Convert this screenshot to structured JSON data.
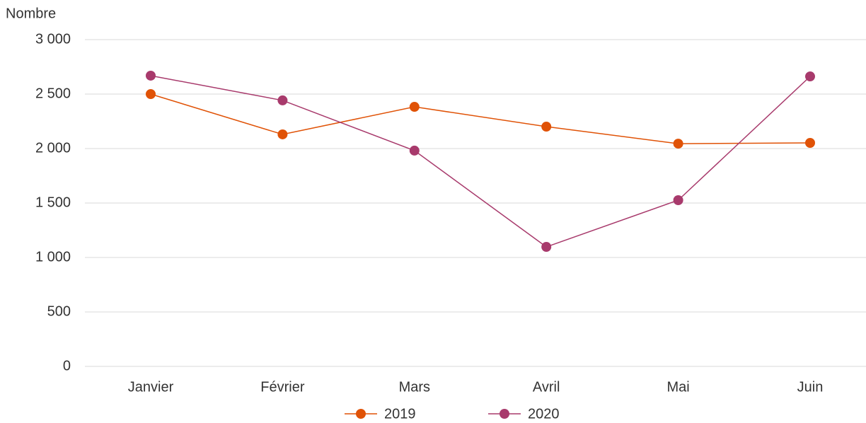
{
  "chart_data": {
    "type": "line",
    "y_label": "Nombre",
    "categories": [
      "Janvier",
      "Février",
      "Mars",
      "Avril",
      "Mai",
      "Juin"
    ],
    "series": [
      {
        "name": "2019",
        "color": "#e05206",
        "values": [
          2500,
          2130,
          2383,
          2201,
          2045,
          2052
        ]
      },
      {
        "name": "2020",
        "color": "#a83a6c",
        "values": [
          2669,
          2442,
          1981,
          1097,
          1526,
          2662
        ]
      }
    ],
    "ylim": [
      0,
      3000
    ],
    "yticks": [
      0,
      500,
      {
        "value": 1000,
        "label": "1 000"
      },
      {
        "value": 1500,
        "label": "1 500"
      },
      {
        "value": 2000,
        "label": "2 000"
      },
      {
        "value": 2500,
        "label": "2 500"
      },
      {
        "value": 3000,
        "label": "3 000"
      }
    ],
    "grid": true,
    "legend": "bottom"
  }
}
